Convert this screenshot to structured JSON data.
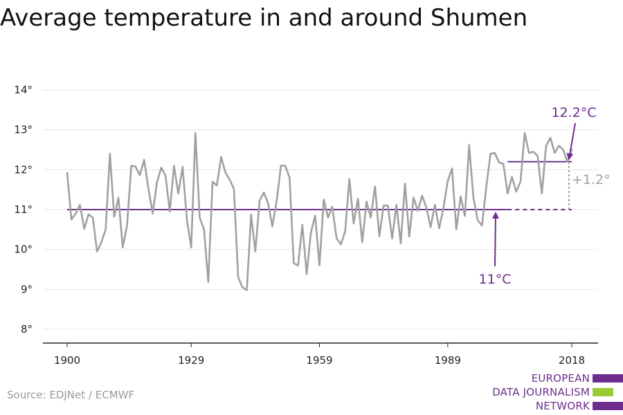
{
  "title": "Average temperature in and around Shumen",
  "source": "Source: EDJNet / ECMWF",
  "logo": {
    "lines": [
      "EUROPEAN",
      "DATA JOURNALISM",
      "NETWORK"
    ]
  },
  "colors": {
    "series": "#a0a0a0",
    "accent": "#6e2c8e",
    "diff": "#a0a0a0",
    "axis": "#222222",
    "grid": "#e6e6e6",
    "logo_green": "#99cc33"
  },
  "chart_data": {
    "type": "line",
    "title": "Average temperature in and around Shumen",
    "xlim": [
      1900,
      2018
    ],
    "ylim": [
      8,
      14
    ],
    "x_ticks": [
      1900,
      1929,
      1959,
      1989,
      2018
    ],
    "x_tick_labels": [
      "1900",
      "1929",
      "1959",
      "1989",
      "2018"
    ],
    "y_ticks": [
      8,
      9,
      10,
      11,
      12,
      13,
      14
    ],
    "y_tick_labels": [
      "8°",
      "9°",
      "10°",
      "11°",
      "12°",
      "13°",
      "14°"
    ],
    "grid": true,
    "series": [
      {
        "x": [
          1900,
          1901,
          1902,
          1903,
          1904,
          1905,
          1906,
          1907,
          1908,
          1909,
          1910,
          1911,
          1912,
          1913,
          1914,
          1915,
          1916,
          1917,
          1918,
          1919,
          1920,
          1921,
          1922,
          1923,
          1924,
          1925,
          1926,
          1927,
          1928,
          1929,
          1930,
          1931,
          1932,
          1933,
          1934,
          1935,
          1936,
          1937,
          1938,
          1939,
          1940,
          1941,
          1942,
          1943,
          1944,
          1945,
          1946,
          1947,
          1948,
          1949,
          1950,
          1951,
          1952,
          1953,
          1954,
          1955,
          1956,
          1957,
          1958,
          1959,
          1960,
          1961,
          1962,
          1963,
          1964,
          1965,
          1966,
          1967,
          1968,
          1969,
          1970,
          1971,
          1972,
          1973,
          1974,
          1975,
          1976,
          1977,
          1978,
          1979,
          1980,
          1981,
          1982,
          1983,
          1984,
          1985,
          1986,
          1987,
          1988,
          1989,
          1990,
          1991,
          1992,
          1993,
          1994,
          1995,
          1996,
          1997,
          1998,
          1999,
          2000,
          2001,
          2002,
          2003,
          2004,
          2005,
          2006,
          2007,
          2008,
          2009,
          2010,
          2011,
          2012,
          2013,
          2014,
          2015,
          2016,
          2017,
          2018
        ],
        "values": [
          11.92,
          10.75,
          10.9,
          11.12,
          10.52,
          10.88,
          10.8,
          9.95,
          10.18,
          10.5,
          12.4,
          10.82,
          11.3,
          10.05,
          10.6,
          12.1,
          12.08,
          11.86,
          12.25,
          11.53,
          10.9,
          11.68,
          12.05,
          11.85,
          10.95,
          12.1,
          11.4,
          12.07,
          10.75,
          10.05,
          12.92,
          10.8,
          10.5,
          9.18,
          11.7,
          11.6,
          12.32,
          11.93,
          11.75,
          11.52,
          9.3,
          9.05,
          8.98,
          10.88,
          9.95,
          11.22,
          11.43,
          11.15,
          10.58,
          11.22,
          12.1,
          12.1,
          11.8,
          9.65,
          9.6,
          10.62,
          9.38,
          10.42,
          10.85,
          9.6,
          11.25,
          10.8,
          11.07,
          10.28,
          10.13,
          10.45,
          11.77,
          10.65,
          11.27,
          10.18,
          11.2,
          10.8,
          11.58,
          10.33,
          11.1,
          11.1,
          10.27,
          11.12,
          10.15,
          11.65,
          10.32,
          11.3,
          10.97,
          11.35,
          11.05,
          10.56,
          11.12,
          10.53,
          11.05,
          11.72,
          12.03,
          10.5,
          11.33,
          10.84,
          12.62,
          11.3,
          10.73,
          10.6,
          11.55,
          12.4,
          12.42,
          12.18,
          12.15,
          11.4,
          11.82,
          11.45,
          11.7,
          12.92,
          12.42,
          12.45,
          12.35,
          11.4,
          12.6,
          12.8,
          12.42,
          12.6,
          12.5,
          12.2,
          12.5
        ]
      }
    ],
    "reference_lines": [
      {
        "label": "11°C",
        "value": 11,
        "x_start": 1900,
        "x_end": 2018,
        "dashed_from": 2003
      },
      {
        "label": "12.2°C",
        "value": 12.2,
        "x_start": 2003,
        "x_end": 2018
      }
    ],
    "annotations": {
      "recent_label": "12.2°C",
      "baseline_label": "11°C",
      "difference_label": "+1.2°"
    }
  }
}
